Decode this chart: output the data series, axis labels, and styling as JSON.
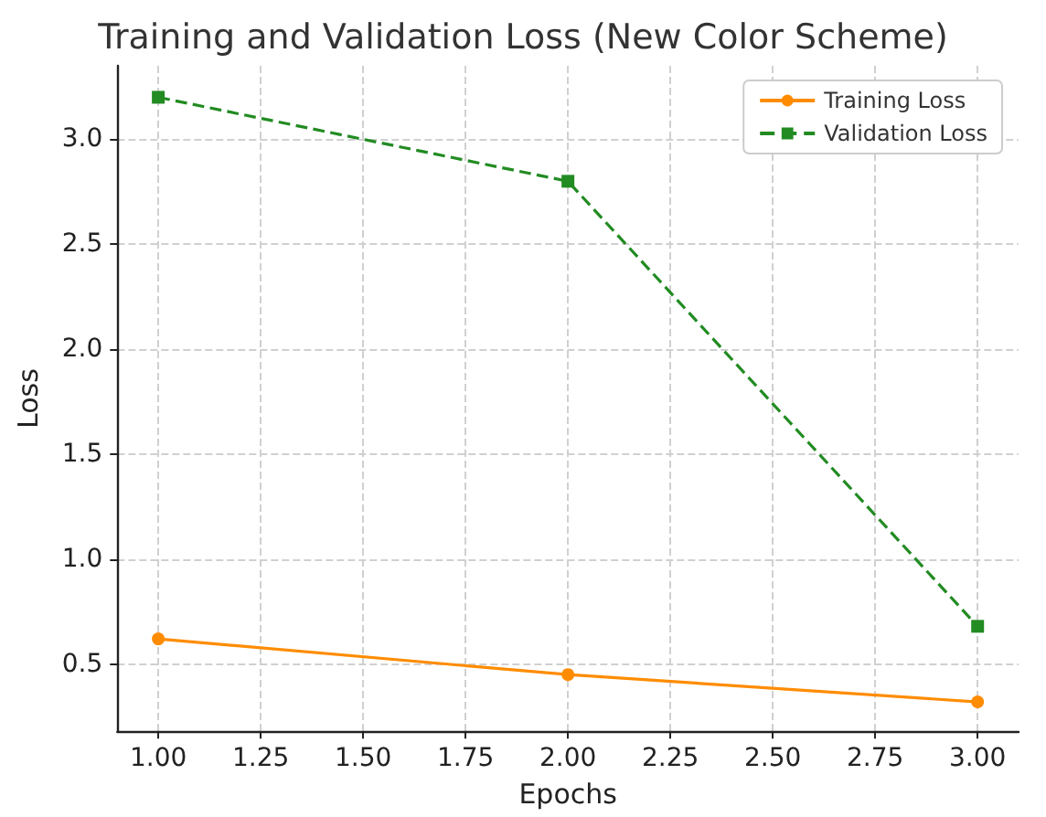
{
  "chart_data": {
    "type": "line",
    "title": "Training and Validation Loss (New Color Scheme)",
    "xlabel": "Epochs",
    "ylabel": "Loss",
    "x": [
      1,
      2,
      3
    ],
    "series": [
      {
        "name": "Training Loss",
        "color": "#ff8c00",
        "values": [
          0.62,
          0.45,
          0.32
        ],
        "marker": "circle",
        "line_style": "solid"
      },
      {
        "name": "Validation Loss",
        "color": "#228b22",
        "values": [
          3.2,
          2.8,
          0.68
        ],
        "marker": "square",
        "line_style": "dashed"
      }
    ],
    "xlim": [
      0.9,
      3.1
    ],
    "xticks": [
      {
        "value": 1,
        "label": "1.00"
      },
      {
        "value": 1.25,
        "label": "1.25"
      },
      {
        "value": 1.5,
        "label": "1.50"
      },
      {
        "value": 1.75,
        "label": "1.75"
      },
      {
        "value": 2,
        "label": "2.00"
      },
      {
        "value": 2.25,
        "label": "2.25"
      },
      {
        "value": 2.5,
        "label": "2.50"
      },
      {
        "value": 2.75,
        "label": "2.75"
      },
      {
        "value": 3,
        "label": "3.00"
      }
    ],
    "ylim": [
      0.18,
      3.35
    ],
    "yticks": [
      {
        "value": 0.5,
        "label": "0.5"
      },
      {
        "value": 1,
        "label": "1.0"
      },
      {
        "value": 1.5,
        "label": "1.5"
      },
      {
        "value": 2,
        "label": "2.0"
      },
      {
        "value": 2.5,
        "label": "2.5"
      },
      {
        "value": 3,
        "label": "3.0"
      }
    ],
    "grid": true,
    "legend": "top right"
  }
}
